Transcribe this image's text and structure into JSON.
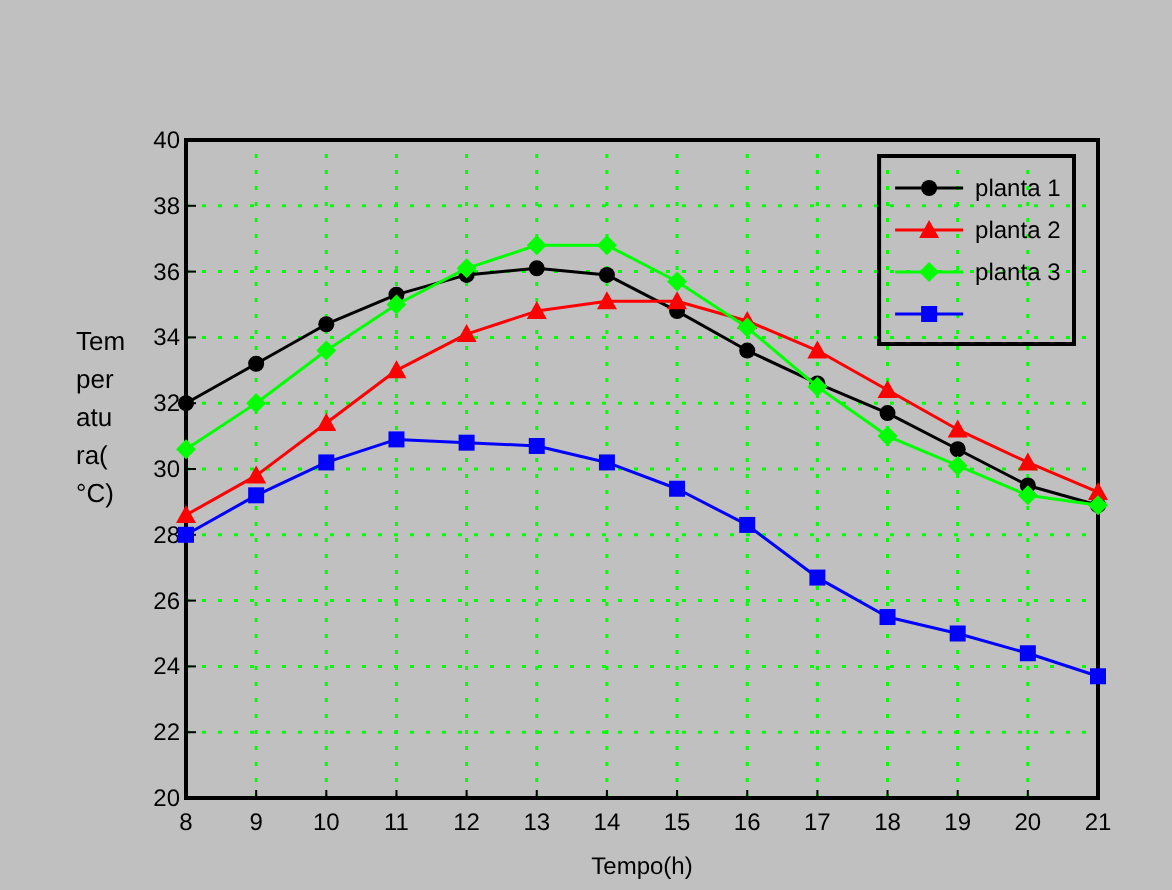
{
  "chart_data": {
    "type": "line",
    "xlabel": "Tempo(h)",
    "ylabel": "Temperatura(°C)",
    "x": [
      8,
      9,
      10,
      11,
      12,
      13,
      14,
      15,
      16,
      17,
      18,
      19,
      20,
      21
    ],
    "xlim": [
      8,
      21
    ],
    "xticks": [
      8,
      9,
      10,
      11,
      12,
      13,
      14,
      15,
      16,
      17,
      18,
      19,
      20,
      21
    ],
    "ylim": [
      20,
      40
    ],
    "yticks": [
      20,
      22,
      24,
      26,
      28,
      30,
      32,
      34,
      36,
      38,
      40
    ],
    "grid": true,
    "legend": "top right",
    "line_style": "solid",
    "series": [
      {
        "name": "planta 1",
        "color": "#000000",
        "marker": "circle",
        "values": [
          32.0,
          33.2,
          34.4,
          35.3,
          35.9,
          36.1,
          35.9,
          34.8,
          33.6,
          32.6,
          31.7,
          30.6,
          29.5,
          28.9
        ]
      },
      {
        "name": "planta 2",
        "color": "#ff0000",
        "marker": "triangle",
        "values": [
          28.6,
          29.8,
          31.4,
          33.0,
          34.1,
          34.8,
          35.1,
          35.1,
          34.5,
          33.6,
          32.4,
          31.2,
          30.2,
          29.3
        ]
      },
      {
        "name": "planta 3",
        "color": "#00ff00",
        "marker": "diamond",
        "values": [
          30.6,
          32.0,
          33.6,
          35.0,
          36.1,
          36.8,
          36.8,
          35.7,
          34.3,
          32.5,
          31.0,
          30.1,
          29.2,
          28.9
        ]
      },
      {
        "color": "#0000ff",
        "marker": "square",
        "values": [
          28.0,
          29.2,
          30.2,
          30.9,
          30.8,
          30.7,
          30.2,
          29.4,
          28.3,
          26.7,
          25.5,
          25.0,
          24.4,
          23.7
        ]
      }
    ]
  }
}
